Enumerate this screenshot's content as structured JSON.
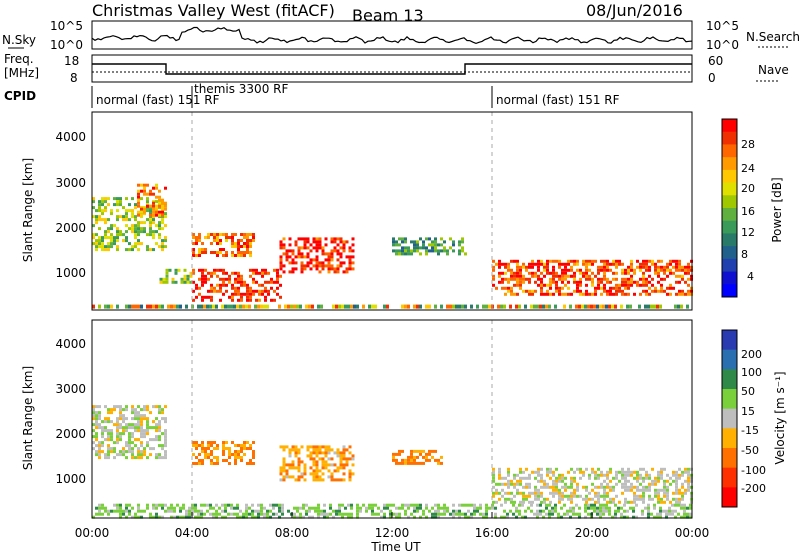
{
  "header": {
    "station": "Christmas Valley West (fitACF)",
    "beam": "Beam 13",
    "date": "08/Jun/2016"
  },
  "panels": {
    "nsky_label": "N.Sky",
    "nsky_ticks": [
      "10^5",
      "10^0"
    ],
    "nsearch_label": "N.Search",
    "freq_label_1": "Freq.",
    "freq_label_2": "[MHz]",
    "freq_ticks": [
      "18",
      "8"
    ],
    "nave_ticks": [
      "60",
      "0"
    ],
    "nave_label": "Nave",
    "cpid_label": "CPID",
    "cpid_segments": [
      "normal (fast) 151 RF",
      "themis 3300 RF",
      "normal (fast) 151 RF"
    ]
  },
  "power_colorbar": {
    "label": "Power [dB]",
    "ticks": [
      "28",
      "24",
      "20",
      "16",
      "12",
      "8",
      "4"
    ],
    "colors": [
      "#ff0000",
      "#f03000",
      "#ff6600",
      "#ff9a00",
      "#ffc800",
      "#e0e000",
      "#a0c800",
      "#60b040",
      "#3a9a5a",
      "#2a7a6a",
      "#20608a",
      "#2040b0",
      "#1010d0",
      "#0000ff"
    ]
  },
  "velocity_colorbar": {
    "label": "Velocity [m s⁻¹]",
    "ticks": [
      "200",
      "100",
      "50",
      "15",
      "-15",
      "-50",
      "-100",
      "-200"
    ],
    "colors": [
      "#2a3ab0",
      "#2a70b0",
      "#2f8a4a",
      "#7ad03a",
      "#bebebe",
      "#ffb000",
      "#ff7000",
      "#ff3000",
      "#ff0000"
    ]
  },
  "axes": {
    "y_label": "Slant Range [km]",
    "y_ticks": [
      "4000",
      "3000",
      "2000",
      "1000"
    ],
    "x_ticks": [
      "00:00",
      "04:00",
      "08:00",
      "12:00",
      "16:00",
      "20:00",
      "00:00"
    ],
    "x_label": "Time UT"
  },
  "chart_data": {
    "type": "heatmap",
    "title": "Christmas Valley West (fitACF) Beam 13",
    "xlabel": "Time UT",
    "ylabel": "Slant Range [km]",
    "xlim": [
      "00:00",
      "24:00"
    ],
    "ylim": [
      180,
      4600
    ],
    "mode_changes_ut": [
      "04:00",
      "16:00"
    ],
    "power_scale_db": [
      0,
      30
    ],
    "velocity_scale_ms": [
      -200,
      200
    ],
    "power_regions": [
      {
        "t": [
          0.0,
          3.0
        ],
        "range_km": [
          1500,
          2700
        ],
        "power_db": 16
      },
      {
        "t": [
          1.8,
          3.0
        ],
        "range_km": [
          2300,
          3000
        ],
        "power_db": 24
      },
      {
        "t": [
          2.7,
          4.0
        ],
        "range_km": [
          800,
          1100
        ],
        "power_db": 16
      },
      {
        "t": [
          4.0,
          6.5
        ],
        "range_km": [
          1400,
          1900
        ],
        "power_db": 24
      },
      {
        "t": [
          4.0,
          7.5
        ],
        "range_km": [
          400,
          1100
        ],
        "power_db": 28
      },
      {
        "t": [
          7.5,
          10.5
        ],
        "range_km": [
          1000,
          1800
        ],
        "power_db": 28
      },
      {
        "t": [
          12.0,
          15.0
        ],
        "range_km": [
          1400,
          1800
        ],
        "power_db": 12
      },
      {
        "t": [
          16.0,
          24.0
        ],
        "range_km": [
          500,
          1300
        ],
        "power_db": 26
      }
    ],
    "velocity_regions": [
      {
        "t": [
          0.0,
          3.0
        ],
        "range_km": [
          1500,
          2700
        ],
        "velocity_ms": 0
      },
      {
        "t": [
          4.0,
          6.5
        ],
        "range_km": [
          1400,
          1900
        ],
        "velocity_ms": -60
      },
      {
        "t": [
          7.5,
          10.5
        ],
        "range_km": [
          1000,
          1800
        ],
        "velocity_ms": -40
      },
      {
        "t": [
          12.0,
          14.0
        ],
        "range_km": [
          1400,
          1700
        ],
        "velocity_ms": -60
      },
      {
        "t": [
          16.0,
          24.0
        ],
        "range_km": [
          500,
          1300
        ],
        "velocity_ms": 0
      },
      {
        "t": [
          0.0,
          24.0
        ],
        "range_km": [
          200,
          500
        ],
        "velocity_ms": 30
      }
    ]
  }
}
